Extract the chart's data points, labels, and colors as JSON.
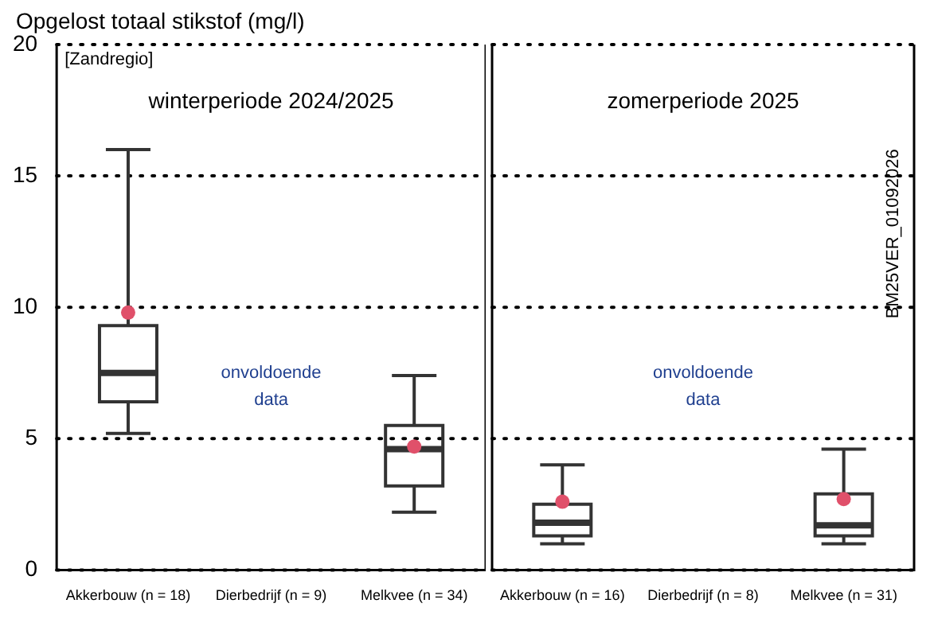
{
  "chart_data": [
    {
      "type": "box",
      "title": "winterperiode 2024/2025",
      "ylabel": "Opgelost totaal stikstof (mg/l)",
      "categories": [
        "Akkerbouw (n = 18)",
        "Dierbedrijf (n = 9)",
        "Melkvee (n = 34)"
      ],
      "series": [
        {
          "color": "#333333",
          "boxes": [
            {
              "low": 5.2,
              "q1": 6.4,
              "median": 7.5,
              "q3": 9.3,
              "high": 16,
              "mean": 9.8
            },
            null,
            {
              "low": 2.2,
              "q1": 3.2,
              "median": 4.6,
              "q3": 5.5,
              "high": 7.4,
              "mean": 4.7
            }
          ]
        }
      ],
      "ylim": [
        0,
        20
      ],
      "yticks": [
        0,
        5,
        10,
        15,
        20
      ],
      "grid": "y",
      "annotations": [
        "[Zandregio]",
        "onvoldoende data"
      ]
    },
    {
      "type": "box",
      "title": "zomerperiode 2025",
      "categories": [
        "Akkerbouw (n = 16)",
        "Dierbedrijf (n = 8)",
        "Melkvee (n = 31)"
      ],
      "series": [
        {
          "color": "#333333",
          "boxes": [
            {
              "low": 1.0,
              "q1": 1.3,
              "median": 1.8,
              "q3": 2.5,
              "high": 4.0,
              "mean": 2.6
            },
            null,
            {
              "low": 1.0,
              "q1": 1.3,
              "median": 1.7,
              "q3": 2.9,
              "high": 4.6,
              "mean": 2.7
            }
          ]
        }
      ],
      "ylim": [
        0,
        20
      ],
      "yticks": [
        0,
        5,
        10,
        15,
        20
      ],
      "grid": "y",
      "tick_labels": "x",
      "annotations": [
        "BM25VER_01092026",
        "onvoldoende data"
      ]
    }
  ]
}
